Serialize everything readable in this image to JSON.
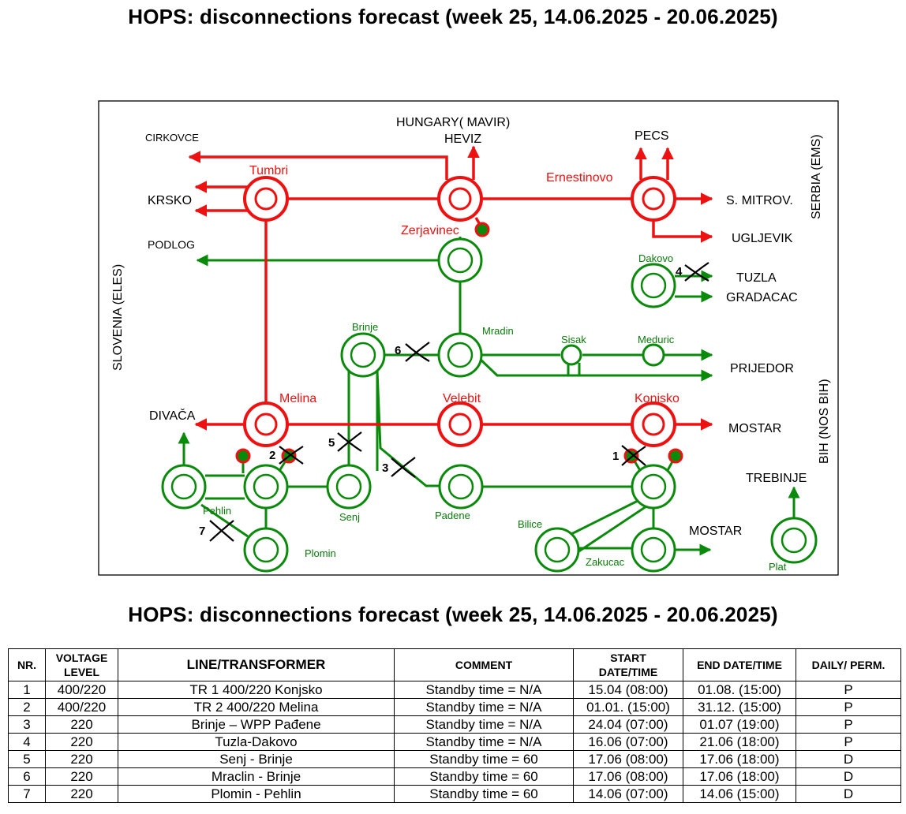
{
  "titles": {
    "top": "HOPS: disconnections forecast (week 25, 14.06.2025 - 20.06.2025)",
    "bottom": "HOPS: disconnections forecast (week 25, 14.06.2025 - 20.06.2025)"
  },
  "colors": {
    "line_400kv": "#ee1111",
    "line_220kv": "#0a8a0a",
    "station_400_label": "#ee1111",
    "station_220_label": "#0a7a0a",
    "disconnection_mark": "#000000"
  },
  "diagram": {
    "borders": {
      "hungary": "HUNGARY( MAVIR)",
      "slovenia": "SLOVENIA (ELES)",
      "serbia": "SERBIA (EMS)",
      "bih": "BIH (NOS BIH)"
    },
    "external_nodes": {
      "cirkovce": "CIRKOVCE",
      "heviz": "HEVIZ",
      "pecs": "PECS",
      "krsko": "KRSKO",
      "s_mitrov": "S. MITROV.",
      "ugljevik": "UGLJEVIK",
      "podlog": "PODLOG",
      "tuzla": "TUZLA",
      "gradacac": "GRADACAC",
      "prijedor": "PRIJEDOR",
      "divaca": "DIVAČA",
      "mostar_400": "MOSTAR",
      "trebinje": "TREBINJE",
      "mostar_220": "MOSTAR"
    },
    "stations_400kv": {
      "tumbri": "Tumbri",
      "ernestinovo": "Ernestinovo",
      "zerjavinec": "Zerjavinec",
      "melina": "Melina",
      "velebit": "Velebit",
      "konjsko": "Konjsko"
    },
    "stations_220kv": {
      "dakovo": "Dakovo",
      "brinje": "Brinje",
      "mraclin": "Mradin",
      "sisak": "Sisak",
      "meduric": "Meduric",
      "pehlin": "Pehlin",
      "senj": "Senj",
      "padene": "Padene",
      "bilice": "Bilice",
      "plomin": "Plomin",
      "zakucac": "Zakucac",
      "plat": "Plat"
    },
    "marks": [
      "1",
      "2",
      "3",
      "4",
      "5",
      "6",
      "7"
    ]
  },
  "table": {
    "headers": {
      "nr": "NR.",
      "voltage_1": "VOLTAGE",
      "voltage_2": "LEVEL",
      "line": "LINE/TRANSFORMER",
      "comment": "COMMENT",
      "start_1": "START",
      "start_2": "DATE/TIME",
      "end": "END DATE/TIME",
      "daily": "DAILY/ PERM."
    },
    "rows": [
      {
        "nr": "1",
        "voltage": "400/220",
        "line": "TR 1 400/220 Konjsko",
        "comment": "Standby time = N/A",
        "start": "15.04 (08:00)",
        "end": "01.08. (15:00)",
        "type": "P"
      },
      {
        "nr": "2",
        "voltage": "400/220",
        "line": "TR 2 400/220 Melina",
        "comment": "Standby time = N/A",
        "start": "01.01. (15:00)",
        "end": "31.12. (15:00)",
        "type": "P"
      },
      {
        "nr": "3",
        "voltage": "220",
        "line": "Brinje – WPP Pađene",
        "comment": "Standby time = N/A",
        "start": "24.04 (07:00)",
        "end": "01.07 (19:00)",
        "type": "P"
      },
      {
        "nr": "4",
        "voltage": "220",
        "line": "Tuzla-Dakovo",
        "comment": "Standby time = N/A",
        "start": "16.06 (07:00)",
        "end": "21.06 (18:00)",
        "type": "P"
      },
      {
        "nr": "5",
        "voltage": "220",
        "line": "Senj - Brinje",
        "comment": "Standby time = 60",
        "start": "17.06 (08:00)",
        "end": "17.06 (18:00)",
        "type": "D"
      },
      {
        "nr": "6",
        "voltage": "220",
        "line": "Mraclin - Brinje",
        "comment": "Standby time = 60",
        "start": "17.06 (08:00)",
        "end": "17.06 (18:00)",
        "type": "D"
      },
      {
        "nr": "7",
        "voltage": "220",
        "line": "Plomin - Pehlin",
        "comment": "Standby time = 60",
        "start": "14.06 (07:00)",
        "end": "14.06 (15:00)",
        "type": "D"
      }
    ]
  }
}
